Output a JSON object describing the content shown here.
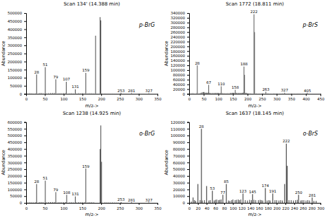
{
  "chart_data": [
    {
      "type": "bar",
      "title": "Scan 134' (14.388 min)",
      "annotation": "p-BrG",
      "xlabel": "m/z->",
      "ylabel": "Abundance",
      "color": "#555555",
      "xlim": [
        0,
        350
      ],
      "ylim": [
        0,
        500000
      ],
      "xticks": [
        0,
        50,
        100,
        150,
        200,
        250,
        300,
        350
      ],
      "yticks": [
        0,
        50000,
        100000,
        150000,
        200000,
        250000,
        300000,
        350000,
        400000,
        450000,
        500000
      ],
      "series": [
        {
          "x": [
            28,
            51,
            79,
            107,
            131,
            159,
            185,
            197,
            199,
            253,
            281,
            327
          ],
          "values": [
            120000,
            165000,
            90000,
            75000,
            28000,
            130000,
            360000,
            475000,
            455000,
            6000,
            5000,
            4000
          ],
          "labels": [
            "28",
            "51",
            "79",
            "107",
            "131",
            "159",
            null,
            null,
            null,
            "253",
            "281",
            "327"
          ]
        },
        {
          "x": [
            5,
            10,
            15,
            20,
            25,
            35,
            40,
            45,
            55,
            60,
            65,
            70,
            75,
            85,
            90,
            95,
            100,
            105,
            115,
            120,
            125,
            135,
            140,
            145,
            150,
            155,
            165,
            170,
            175,
            180,
            210,
            215,
            220,
            225,
            230,
            235,
            240,
            245
          ],
          "values": [
            3000,
            4000,
            3500,
            2500,
            3000,
            5000,
            6000,
            4000,
            3000,
            4500,
            5000,
            6000,
            5500,
            3500,
            4000,
            3500,
            4000,
            4500,
            3000,
            3500,
            3000,
            2500,
            4000,
            3500,
            4000,
            3000,
            3500,
            4000,
            3500,
            3000,
            2500,
            2000,
            2000,
            1500,
            2000,
            1500,
            2000,
            1500
          ]
        }
      ]
    },
    {
      "type": "bar",
      "title": "Scan 1772 (18.811 min)",
      "annotation": "p-BrS",
      "xlabel": "m/z->",
      "ylabel": "Abundance",
      "color": "#555555",
      "xlim": [
        0,
        450
      ],
      "ylim": [
        0,
        340000
      ],
      "xticks": [
        0,
        50,
        100,
        150,
        200,
        250,
        300,
        350,
        400,
        450
      ],
      "yticks": [
        0,
        20000,
        40000,
        60000,
        80000,
        100000,
        120000,
        140000,
        160000,
        180000,
        200000,
        220000,
        240000,
        260000,
        280000,
        300000,
        320000,
        340000
      ],
      "series": [
        {
          "x": [
            28,
            67,
            110,
            158,
            188,
            190,
            222,
            224,
            263,
            327,
            405
          ],
          "values": [
            120000,
            38000,
            32000,
            17000,
            115000,
            80000,
            335000,
            260000,
            9000,
            5000,
            4000
          ],
          "labels": [
            "28",
            "67",
            "110",
            "158",
            "188",
            null,
            "222",
            null,
            "263",
            "327",
            "405"
          ]
        },
        {
          "x": [
            5,
            10,
            15,
            20,
            25,
            30,
            35,
            40,
            42,
            45,
            48,
            50,
            52,
            55,
            57,
            60,
            62,
            65,
            70,
            72,
            75,
            77,
            80,
            82,
            85,
            88,
            90,
            92,
            95,
            97,
            100,
            102,
            105,
            107,
            112,
            115,
            120,
            125,
            130,
            135,
            140,
            142,
            145,
            148,
            150,
            152,
            155,
            160,
            162,
            165,
            168,
            170,
            172,
            175,
            177,
            180,
            182,
            185,
            193,
            195,
            197,
            200,
            205,
            210,
            215,
            230,
            240,
            250,
            255,
            260,
            270,
            280,
            290,
            295,
            300,
            310,
            315,
            320,
            330,
            340,
            350,
            360,
            370,
            375,
            380,
            390
          ],
          "values": [
            2000,
            3000,
            2500,
            2000,
            2500,
            2000,
            3000,
            4000,
            5000,
            6000,
            7000,
            8000,
            6000,
            5000,
            4000,
            5000,
            4000,
            5000,
            4000,
            3500,
            3000,
            2500,
            3000,
            3500,
            3000,
            3500,
            3000,
            3500,
            3000,
            4000,
            3500,
            3000,
            2500,
            3000,
            2500,
            3000,
            3000,
            2500,
            3000,
            2500,
            3000,
            3500,
            3000,
            4000,
            4500,
            4000,
            4000,
            4500,
            4000,
            3500,
            3000,
            3000,
            3500,
            3500,
            3000,
            3500,
            4000,
            5000,
            4000,
            3500,
            3000,
            2500,
            2000,
            2000,
            1500,
            2000,
            1500,
            2000,
            2000,
            1500,
            2000,
            1500,
            2000,
            1500,
            1500,
            1500,
            1500,
            2000,
            1500,
            1500,
            1500,
            1500,
            1500,
            1500,
            1500,
            1500
          ]
        }
      ]
    },
    {
      "type": "bar",
      "title": "Scan 1238 (14.925 min)",
      "annotation": "o-BrG",
      "xlabel": "m/z->",
      "ylabel": "Abundance",
      "color": "#555555",
      "xlim": [
        0,
        350
      ],
      "ylim": [
        0,
        600000
      ],
      "xticks": [
        0,
        50,
        100,
        150,
        200,
        250,
        300,
        350
      ],
      "yticks": [
        0,
        50000,
        100000,
        150000,
        200000,
        250000,
        300000,
        350000,
        400000,
        450000,
        500000,
        550000,
        600000
      ],
      "series": [
        {
          "x": [
            28,
            51,
            79,
            108,
            131,
            159,
            197,
            199,
            201,
            253,
            281,
            327
          ],
          "values": [
            140000,
            165000,
            80000,
            60000,
            48000,
            255000,
            400000,
            575000,
            305000,
            6000,
            4500,
            3500
          ],
          "labels": [
            "28",
            "51",
            "79",
            "108",
            "131",
            "159",
            null,
            null,
            null,
            "253",
            "281",
            "327"
          ]
        },
        {
          "x": [
            5,
            10,
            15,
            20,
            25,
            35,
            40,
            45,
            55,
            60,
            65,
            70,
            75,
            85,
            90,
            95,
            100,
            105,
            115,
            120,
            125,
            135,
            140,
            145,
            150,
            155,
            165,
            170,
            175,
            180,
            210,
            215,
            220,
            225,
            230,
            235,
            240,
            245
          ],
          "values": [
            3000,
            4000,
            3500,
            3000,
            3500,
            5000,
            6000,
            4500,
            3500,
            5000,
            5500,
            6000,
            5500,
            4000,
            4500,
            4000,
            4500,
            5000,
            3500,
            4000,
            3500,
            3000,
            4500,
            4000,
            4500,
            4000,
            4000,
            4500,
            4000,
            3500,
            3000,
            2500,
            2500,
            2000,
            2500,
            2000,
            2000,
            1500
          ]
        }
      ]
    },
    {
      "type": "bar",
      "title": "Scan 1637 (18.145 min)",
      "annotation": "o-BrS",
      "xlabel": "m/z->",
      "ylabel": "Abundance",
      "color": "#555555",
      "xlim": [
        0,
        300
      ],
      "ylim": [
        0,
        120000
      ],
      "xticks": [
        0,
        20,
        40,
        60,
        80,
        100,
        120,
        140,
        160,
        180,
        200,
        220,
        240,
        260,
        280,
        300
      ],
      "yticks": [
        0,
        10000,
        20000,
        30000,
        40000,
        50000,
        60000,
        70000,
        80000,
        90000,
        100000,
        110000,
        120000
      ],
      "series": [
        {
          "x": [
            9,
            20,
            28,
            40,
            53,
            77,
            85,
            123,
            145,
            174,
            191,
            218,
            222,
            224,
            250,
            281
          ],
          "values": [
            8000,
            28000,
            110000,
            25000,
            18000,
            12000,
            28000,
            14000,
            13000,
            22000,
            14000,
            28000,
            88000,
            55000,
            12000,
            8000
          ],
          "labels": [
            null,
            null,
            "28",
            null,
            "53",
            "77",
            "85",
            "123",
            "145",
            "174",
            "191",
            null,
            "222",
            null,
            "250",
            "281"
          ]
        },
        {
          "x": [
            5,
            12,
            15,
            25,
            30,
            35,
            45,
            48,
            57,
            60,
            63,
            67,
            70,
            73,
            90,
            93,
            97,
            100,
            105,
            108,
            112,
            115,
            118,
            128,
            133,
            138,
            142,
            148,
            152,
            158,
            162,
            165,
            168,
            178,
            182,
            185,
            196,
            200,
            205,
            209,
            213,
            228,
            233,
            238,
            243,
            247,
            255,
            258,
            262,
            267,
            271,
            275,
            285,
            290
          ],
          "values": [
            2000,
            4000,
            3000,
            4000,
            3500,
            4000,
            3500,
            4000,
            3500,
            4500,
            5000,
            4000,
            4500,
            5000,
            3500,
            3000,
            4000,
            5000,
            4000,
            4500,
            5000,
            4000,
            5000,
            4000,
            3500,
            4500,
            4000,
            4500,
            4000,
            4000,
            4500,
            4000,
            3500,
            3500,
            4000,
            3500,
            4000,
            4000,
            3500,
            4000,
            3500,
            4000,
            4000,
            3500,
            4000,
            4500,
            3500,
            4000,
            4000,
            3500,
            4000,
            3500,
            3000,
            3000
          ]
        }
      ]
    }
  ]
}
